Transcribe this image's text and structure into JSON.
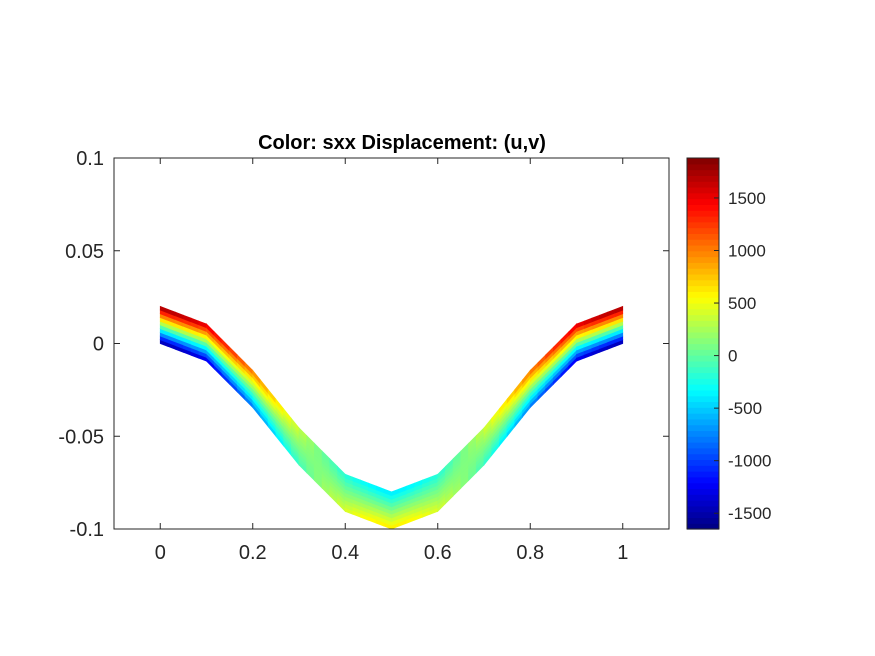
{
  "chart_data": {
    "type": "heatmap",
    "title": "Color: sxx  Displacement: (u,v)",
    "xlabel": "",
    "ylabel": "",
    "xlim": [
      -0.1,
      1.1
    ],
    "ylim": [
      -0.1,
      0.1
    ],
    "x_ticks": [
      0,
      0.2,
      0.4,
      0.6,
      0.8,
      1
    ],
    "x_tick_labels": [
      "0",
      "0.2",
      "0.4",
      "0.6",
      "0.8",
      "1"
    ],
    "y_ticks": [
      0.1,
      0.05,
      0,
      -0.05,
      -0.1
    ],
    "y_tick_labels": [
      "0.1",
      "0.05",
      "0",
      "-0.05",
      "-0.1"
    ],
    "grid": false,
    "colormap": "jet",
    "colorbar": {
      "range": [
        -1650,
        1880
      ],
      "ticks": [
        1500,
        1000,
        500,
        0,
        -500,
        -1000,
        -1500
      ],
      "tick_labels": [
        "1500",
        "1000",
        "500",
        "0",
        "-500",
        "-1000",
        "-1500"
      ]
    },
    "deformed_beam": {
      "x_range": [
        0,
        1
      ],
      "thickness": 0.02,
      "bottom_edge": [
        {
          "x": 0,
          "y": 0
        },
        {
          "x": 0.1,
          "y": -0.0095
        },
        {
          "x": 0.2,
          "y": -0.0345
        },
        {
          "x": 0.3,
          "y": -0.0655
        },
        {
          "x": 0.4,
          "y": -0.0905
        },
        {
          "x": 0.5,
          "y": -0.1
        },
        {
          "x": 0.6,
          "y": -0.0905
        },
        {
          "x": 0.7,
          "y": -0.0655
        },
        {
          "x": 0.8,
          "y": -0.0345
        },
        {
          "x": 0.9,
          "y": -0.0095
        },
        {
          "x": 1,
          "y": 0
        }
      ],
      "sxx_bottom_fiber_at_ends": -1600,
      "sxx_top_fiber_at_ends": 1850,
      "sxx_bottom_fiber_at_center": 650,
      "sxx_top_fiber_at_center": -420
    }
  }
}
